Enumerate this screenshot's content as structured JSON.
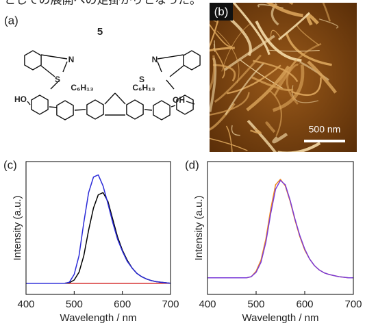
{
  "header_text": "としての展開への足掛かりとなった。",
  "panels": {
    "a": {
      "label": "(a)",
      "compound": "5",
      "atoms": [
        "N",
        "S",
        "HO",
        "C₆H₁₃",
        "C₆H₁₃",
        "N",
        "S",
        "OH"
      ]
    },
    "b": {
      "label": "(b)",
      "scale_bar": "500 nm"
    }
  },
  "chart_data": [
    {
      "type": "line",
      "panel_label": "(c)",
      "x_label": "Wavelength / nm",
      "y_label": "Intensity (a.u.)",
      "x": [
        400,
        410,
        420,
        430,
        440,
        450,
        460,
        470,
        480,
        490,
        500,
        510,
        520,
        530,
        540,
        550,
        560,
        570,
        580,
        590,
        600,
        610,
        620,
        630,
        640,
        650,
        660,
        670,
        680,
        690,
        700
      ],
      "xlim": [
        400,
        700
      ],
      "xticks": [
        400,
        500,
        600,
        700
      ],
      "ylim": [
        -0.1,
        1.1
      ],
      "series": [
        {
          "color": "#d42a2a",
          "values": [
            0,
            0,
            0,
            0,
            0,
            0,
            0,
            0,
            0,
            0,
            0,
            0,
            0,
            0,
            0,
            0,
            0,
            0,
            0,
            0,
            0,
            0,
            0,
            0,
            0,
            0,
            0,
            0,
            0,
            0,
            0
          ]
        },
        {
          "color": "#000000",
          "values": [
            0,
            0,
            0,
            0,
            0,
            0,
            0,
            0,
            0,
            0.005,
            0.03,
            0.1,
            0.25,
            0.48,
            0.68,
            0.8,
            0.82,
            0.74,
            0.58,
            0.42,
            0.3,
            0.21,
            0.14,
            0.09,
            0.06,
            0.04,
            0.025,
            0.015,
            0.01,
            0.005,
            0
          ]
        },
        {
          "color": "#2a2ad8",
          "values": [
            0,
            0,
            0,
            0,
            0,
            0,
            0,
            0,
            0,
            0.01,
            0.08,
            0.25,
            0.55,
            0.82,
            0.96,
            0.98,
            0.88,
            0.72,
            0.55,
            0.4,
            0.29,
            0.2,
            0.14,
            0.09,
            0.06,
            0.04,
            0.025,
            0.015,
            0.01,
            0.005,
            0
          ]
        }
      ]
    },
    {
      "type": "line",
      "panel_label": "(d)",
      "x_label": "Wavelength / nm",
      "y_label": "Intensity (a.u.)",
      "x": [
        400,
        410,
        420,
        430,
        440,
        450,
        460,
        470,
        480,
        490,
        500,
        510,
        520,
        530,
        540,
        550,
        560,
        570,
        580,
        590,
        600,
        610,
        620,
        630,
        640,
        650,
        660,
        670,
        680,
        690,
        700
      ],
      "xlim": [
        400,
        700
      ],
      "xticks": [
        400,
        500,
        600,
        700
      ],
      "ylim": [
        -0.15,
        1.05
      ],
      "series": [
        {
          "color": "#f08a20",
          "values": [
            0,
            0,
            0,
            0,
            0,
            0,
            0,
            0,
            0,
            0.01,
            0.06,
            0.16,
            0.35,
            0.62,
            0.84,
            0.89,
            0.83,
            0.69,
            0.52,
            0.37,
            0.25,
            0.17,
            0.11,
            0.07,
            0.045,
            0.03,
            0.02,
            0.01,
            0.005,
            0,
            0
          ]
        },
        {
          "color": "#7a3ad8",
          "values": [
            0,
            0,
            0,
            0,
            0,
            0,
            0,
            0,
            0,
            0.01,
            0.05,
            0.14,
            0.32,
            0.58,
            0.8,
            0.88,
            0.84,
            0.7,
            0.53,
            0.38,
            0.26,
            0.17,
            0.11,
            0.07,
            0.045,
            0.03,
            0.02,
            0.01,
            0.005,
            0,
            0
          ]
        }
      ]
    }
  ]
}
